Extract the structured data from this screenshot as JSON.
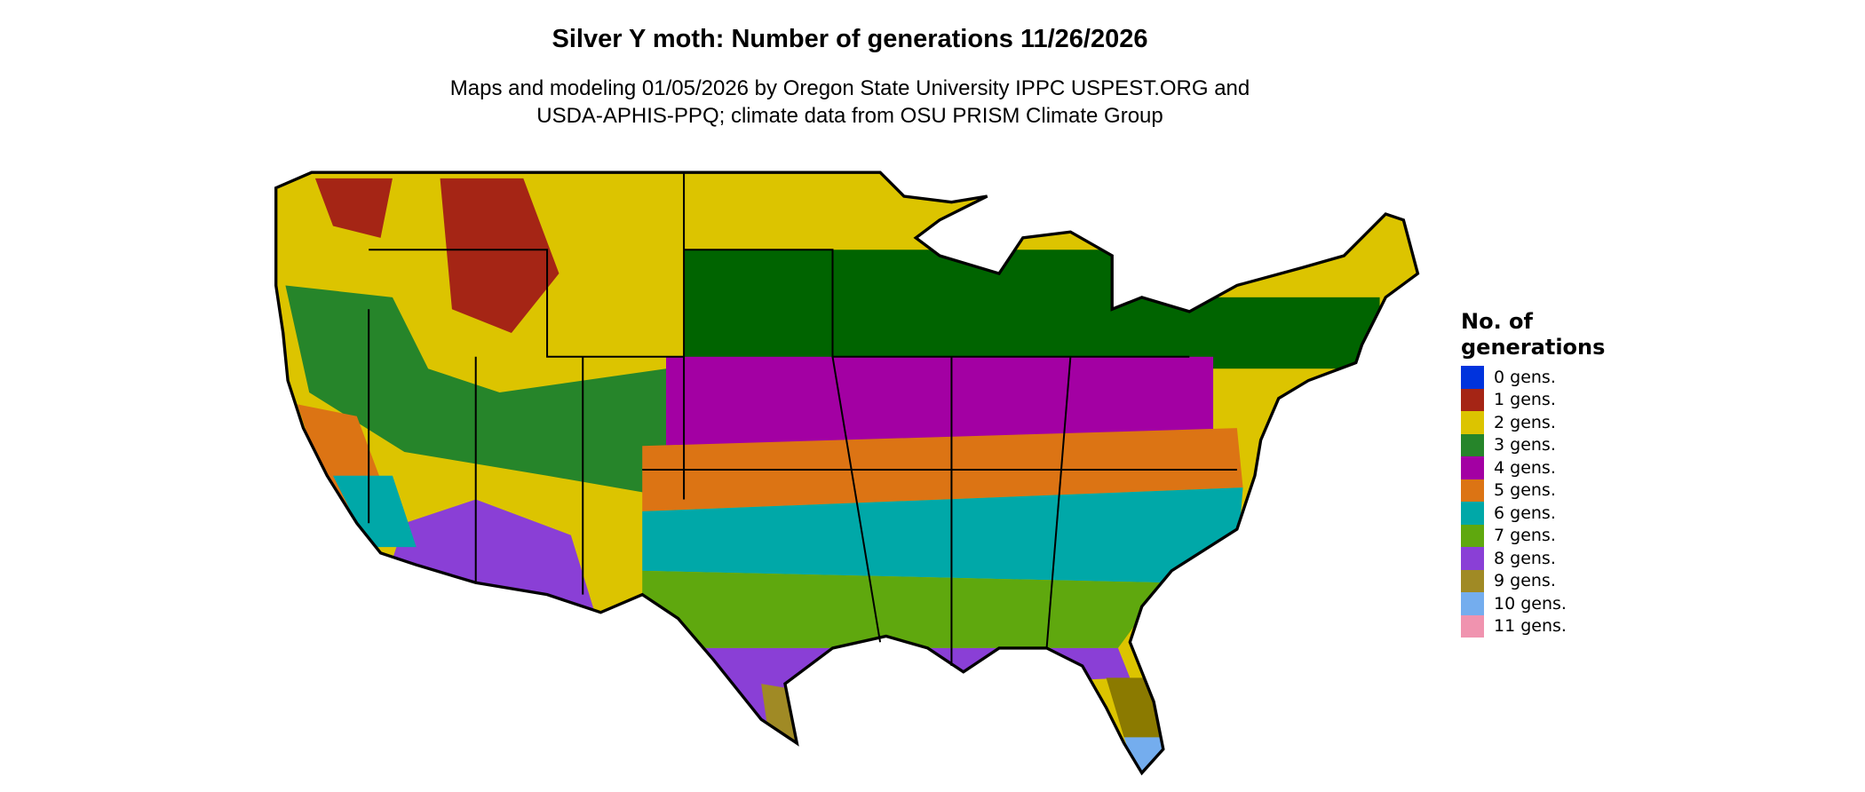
{
  "title": "Silver Y moth: Number of generations 11/26/2026",
  "subtitle_lines": [
    "Maps and modeling 01/05/2026 by Oregon State University IPPC USPEST.ORG and",
    "USDA-APHIS-PPQ; climate data from OSU PRISM Climate Group"
  ],
  "legend": {
    "title": "No. of generations",
    "items": [
      {
        "label": "0 gens.",
        "color": "#0033dd"
      },
      {
        "label": "1 gens.",
        "color": "#a52515"
      },
      {
        "label": "2 gens.",
        "color": "#dcc400"
      },
      {
        "label": "3 gens.",
        "color": "#26852a"
      },
      {
        "label": "4 gens.",
        "color": "#a300a3"
      },
      {
        "label": "5 gens.",
        "color": "#dc7414"
      },
      {
        "label": "6 gens.",
        "color": "#00a8a8"
      },
      {
        "label": "7 gens.",
        "color": "#5fa80e"
      },
      {
        "label": "8 gens.",
        "color": "#8a3fd6"
      },
      {
        "label": "9 gens.",
        "color": "#a08a25"
      },
      {
        "label": "10 gens.",
        "color": "#74adee"
      },
      {
        "label": "11 gens.",
        "color": "#f093af"
      }
    ]
  }
}
